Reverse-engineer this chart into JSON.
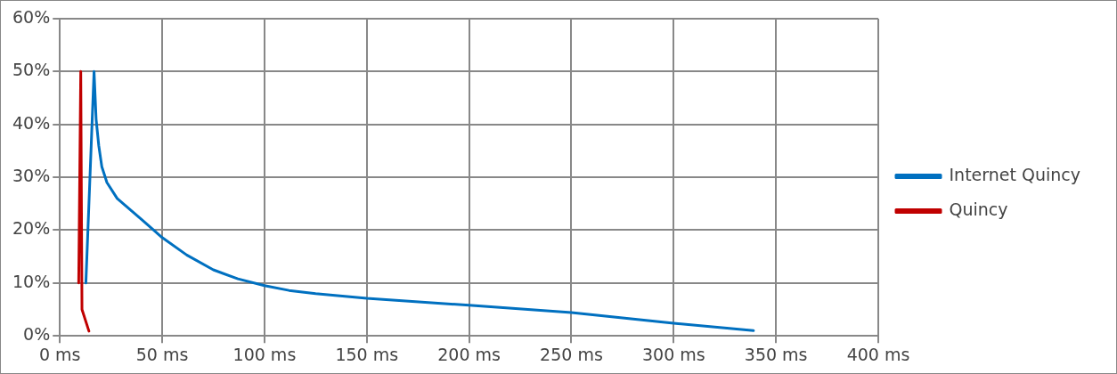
{
  "chart_data": {
    "type": "line",
    "xlim": [
      0,
      400
    ],
    "xticks": [
      {
        "value": 0,
        "label": "0 ms"
      },
      {
        "value": 50,
        "label": "50 ms"
      },
      {
        "value": 100,
        "label": "100 ms"
      },
      {
        "value": 150,
        "label": "150 ms"
      },
      {
        "value": 200,
        "label": "200 ms"
      },
      {
        "value": 250,
        "label": "250 ms"
      },
      {
        "value": 300,
        "label": "300 ms"
      },
      {
        "value": 350,
        "label": "350 ms"
      },
      {
        "value": 400,
        "label": "400 ms"
      }
    ],
    "ylim": [
      0,
      60
    ],
    "yticks": [
      {
        "value": 0,
        "label": "0%"
      },
      {
        "value": 10,
        "label": "10%"
      },
      {
        "value": 20,
        "label": "20%"
      },
      {
        "value": 30,
        "label": "30%"
      },
      {
        "value": 40,
        "label": "40%"
      },
      {
        "value": 50,
        "label": "50%"
      },
      {
        "value": 60,
        "label": "60%"
      }
    ],
    "grid": true,
    "legend": "right",
    "marker": "none",
    "line_style": "solid",
    "series": [
      {
        "name": "Internet Quincy",
        "color": "#0070c0",
        "x": [
          12.7,
          16.7,
          17.7,
          19,
          20.5,
          23,
          28,
          40,
          50,
          62,
          75,
          87,
          100,
          112,
          125,
          150,
          200,
          250,
          300,
          339
        ],
        "values": [
          10,
          50,
          41,
          36,
          32,
          29,
          26,
          22,
          18.6,
          15.3,
          12.5,
          10.8,
          9.5,
          8.6,
          8,
          7.1,
          5.8,
          4.4,
          2.4,
          1
        ]
      },
      {
        "name": "Quincy",
        "color": "#c00000",
        "x": [
          9.2,
          10.2,
          10.8,
          14.2
        ],
        "values": [
          10,
          50,
          5,
          0.9
        ]
      }
    ]
  }
}
